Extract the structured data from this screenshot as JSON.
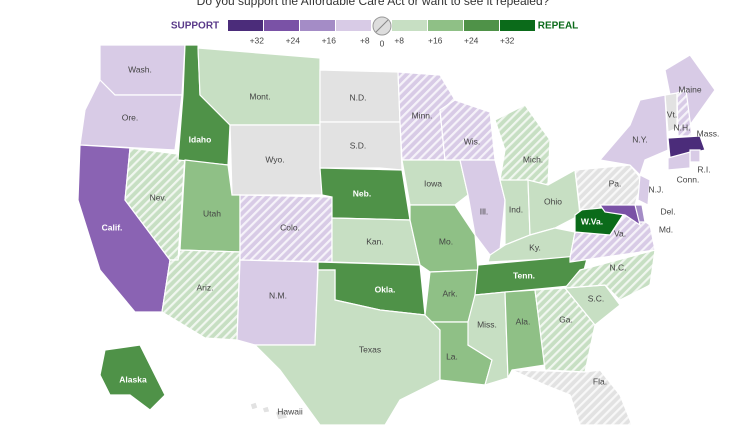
{
  "title": "Do you support the Affordable Care Act or want to see it repealed?",
  "legend": {
    "support": "SUPPORT",
    "repeal": "REPEAL",
    "center": 0,
    "support_items": [
      {
        "label": "+32",
        "color": "#4b2c7a"
      },
      {
        "label": "+24",
        "color": "#7a52a6"
      },
      {
        "label": "+16",
        "color": "#a48cc6"
      },
      {
        "label": "+8",
        "color": "#d8cbe6"
      }
    ],
    "repeal_items": [
      {
        "label": "+8",
        "color": "#c7dfc3"
      },
      {
        "label": "+16",
        "color": "#8fc086"
      },
      {
        "label": "+24",
        "color": "#4f9248"
      },
      {
        "label": "+32",
        "color": "#0b6b1a"
      }
    ]
  },
  "states": [
    {
      "name": "Wash.",
      "color": "#d8cbe6",
      "hatch": false
    },
    {
      "name": "Ore.",
      "color": "#d8cbe6",
      "hatch": false
    },
    {
      "name": "Calif.",
      "color": "#8a63b3",
      "hatch": false
    },
    {
      "name": "Nev.",
      "color": "#c7dfc3",
      "hatch": true
    },
    {
      "name": "Idaho",
      "color": "#4f9248",
      "hatch": false
    },
    {
      "name": "Mont.",
      "color": "#c7dfc3",
      "hatch": false
    },
    {
      "name": "Wyo.",
      "color": "#e2e2e2",
      "hatch": false
    },
    {
      "name": "Utah",
      "color": "#8fc086",
      "hatch": false
    },
    {
      "name": "Colo.",
      "color": "#d8cbe6",
      "hatch": true
    },
    {
      "name": "Ariz.",
      "color": "#c7dfc3",
      "hatch": true
    },
    {
      "name": "N.M.",
      "color": "#d8cbe6",
      "hatch": false
    },
    {
      "name": "N.D.",
      "color": "#e2e2e2",
      "hatch": false
    },
    {
      "name": "S.D.",
      "color": "#e2e2e2",
      "hatch": false
    },
    {
      "name": "Neb.",
      "color": "#4f9248",
      "hatch": false
    },
    {
      "name": "Kan.",
      "color": "#c7dfc3",
      "hatch": false
    },
    {
      "name": "Okla.",
      "color": "#4f9248",
      "hatch": false
    },
    {
      "name": "Texas",
      "color": "#c7dfc3",
      "hatch": false
    },
    {
      "name": "Minn.",
      "color": "#d8cbe6",
      "hatch": true
    },
    {
      "name": "Iowa",
      "color": "#c7dfc3",
      "hatch": false
    },
    {
      "name": "Mo.",
      "color": "#8fc086",
      "hatch": false
    },
    {
      "name": "Ark.",
      "color": "#8fc086",
      "hatch": false
    },
    {
      "name": "La.",
      "color": "#8fc086",
      "hatch": false
    },
    {
      "name": "Wis.",
      "color": "#d8cbe6",
      "hatch": true
    },
    {
      "name": "Ill.",
      "color": "#d8cbe6",
      "hatch": false
    },
    {
      "name": "Mich.",
      "color": "#c7dfc3",
      "hatch": true
    },
    {
      "name": "Ind.",
      "color": "#c7dfc3",
      "hatch": false
    },
    {
      "name": "Ohio",
      "color": "#c7dfc3",
      "hatch": false
    },
    {
      "name": "Ky.",
      "color": "#c7dfc3",
      "hatch": false
    },
    {
      "name": "Tenn.",
      "color": "#4f9248",
      "hatch": false
    },
    {
      "name": "Miss.",
      "color": "#c7dfc3",
      "hatch": false
    },
    {
      "name": "Ala.",
      "color": "#8fc086",
      "hatch": false
    },
    {
      "name": "Ga.",
      "color": "#c7dfc3",
      "hatch": true
    },
    {
      "name": "Fla.",
      "color": "#e2e2e2",
      "hatch": true
    },
    {
      "name": "S.C.",
      "color": "#c7dfc3",
      "hatch": false
    },
    {
      "name": "N.C.",
      "color": "#c7dfc3",
      "hatch": true
    },
    {
      "name": "Va.",
      "color": "#d8cbe6",
      "hatch": true
    },
    {
      "name": "W.Va.",
      "color": "#0b6b1a",
      "hatch": false
    },
    {
      "name": "Pa.",
      "color": "#e2e2e2",
      "hatch": true
    },
    {
      "name": "N.Y.",
      "color": "#d8cbe6",
      "hatch": false
    },
    {
      "name": "Maine",
      "color": "#d8cbe6",
      "hatch": false
    },
    {
      "name": "Vt.",
      "color": "#e2e2e2",
      "hatch": false
    },
    {
      "name": "N.H.",
      "color": "#d8cbe6",
      "hatch": true
    },
    {
      "name": "Mass.",
      "color": "#4b2c7a",
      "hatch": false
    },
    {
      "name": "R.I.",
      "color": "#d8cbe6",
      "hatch": false
    },
    {
      "name": "Conn.",
      "color": "#d8cbe6",
      "hatch": false
    },
    {
      "name": "N.J.",
      "color": "#d8cbe6",
      "hatch": false
    },
    {
      "name": "Del.",
      "color": "#a48cc6",
      "hatch": false
    },
    {
      "name": "Md.",
      "color": "#7a52a6",
      "hatch": false
    },
    {
      "name": "Alaska",
      "color": "#4f9248",
      "hatch": false
    },
    {
      "name": "Hawaii",
      "color": "#e2e2e2",
      "hatch": false
    }
  ]
}
